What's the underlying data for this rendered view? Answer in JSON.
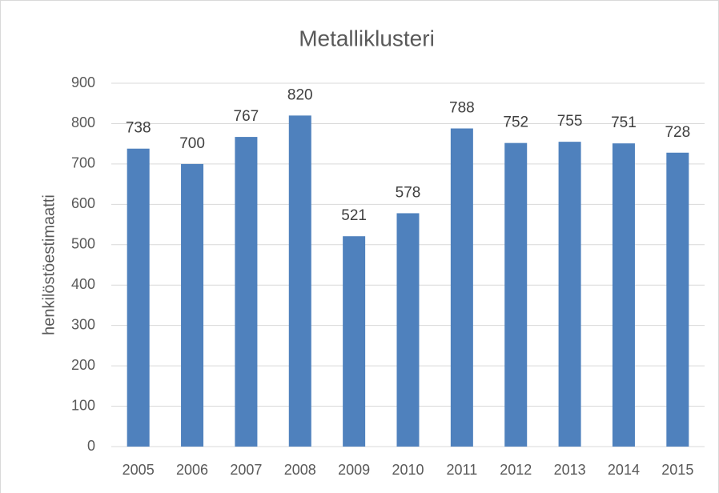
{
  "chart_data": {
    "type": "bar",
    "title": "Metalliklusteri",
    "y_label": "henkilöstöestimaatti",
    "categories": [
      "2005",
      "2006",
      "2007",
      "2008",
      "2009",
      "2010",
      "2011",
      "2012",
      "2013",
      "2014",
      "2015"
    ],
    "values": [
      738,
      700,
      767,
      820,
      521,
      578,
      788,
      752,
      755,
      751,
      728
    ],
    "color": "#4f81bd",
    "ylim": [
      0,
      900
    ],
    "yticks": [
      0,
      100,
      200,
      300,
      400,
      500,
      600,
      700,
      800,
      900
    ],
    "grid": true
  }
}
